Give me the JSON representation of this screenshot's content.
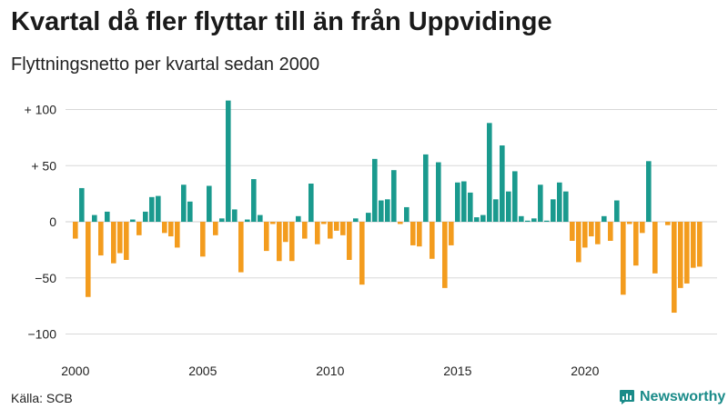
{
  "title": "Kvartal då fler flyttar till än från Uppvidinge",
  "subtitle": "Flyttningsnetto per kvartal sedan 2000",
  "source": "Källa: SCB",
  "brand": "Newsworthy",
  "colors": {
    "positive": "#1a9a8e",
    "negative": "#f39c1e",
    "grid": "#d8d8d8",
    "brand": "#1a8b89"
  },
  "chart_data": {
    "type": "bar",
    "ylim": [
      -110,
      115
    ],
    "y_ticks": [
      {
        "value": 100,
        "label": "+ 100"
      },
      {
        "value": 50,
        "label": "+  50"
      },
      {
        "value": 0,
        "label": "0"
      },
      {
        "value": -50,
        "label": "−50"
      },
      {
        "value": -100,
        "label": "−100"
      }
    ],
    "x_ticks": [
      {
        "label": "2000",
        "year": 2000
      },
      {
        "label": "2005",
        "year": 2005
      },
      {
        "label": "2010",
        "year": 2010
      },
      {
        "label": "2015",
        "year": 2015
      },
      {
        "label": "2020",
        "year": 2020
      }
    ],
    "start_year": 2000,
    "grid": true,
    "values": [
      -15,
      30,
      -67,
      6,
      -30,
      9,
      -37,
      -28,
      -34,
      2,
      -12,
      9,
      22,
      23,
      -10,
      -13,
      -23,
      33,
      18,
      0,
      -31,
      32,
      -12,
      3,
      108,
      11,
      -45,
      2,
      38,
      6,
      -26,
      -2,
      -35,
      -18,
      -35,
      5,
      -15,
      34,
      -20,
      -2,
      -15,
      -8,
      -12,
      -34,
      3,
      -56,
      8,
      56,
      19,
      20,
      46,
      -2,
      13,
      -21,
      -22,
      60,
      -33,
      53,
      -59,
      -21,
      35,
      36,
      26,
      4,
      6,
      88,
      20,
      68,
      27,
      45,
      5,
      1,
      3,
      33,
      1,
      20,
      35,
      27,
      -17,
      -36,
      -23,
      -13,
      -20,
      5,
      -17,
      19,
      -65,
      -2,
      -39,
      -10,
      54,
      -46,
      0,
      -3,
      -81,
      -59,
      -55,
      -41,
      -40
    ]
  }
}
